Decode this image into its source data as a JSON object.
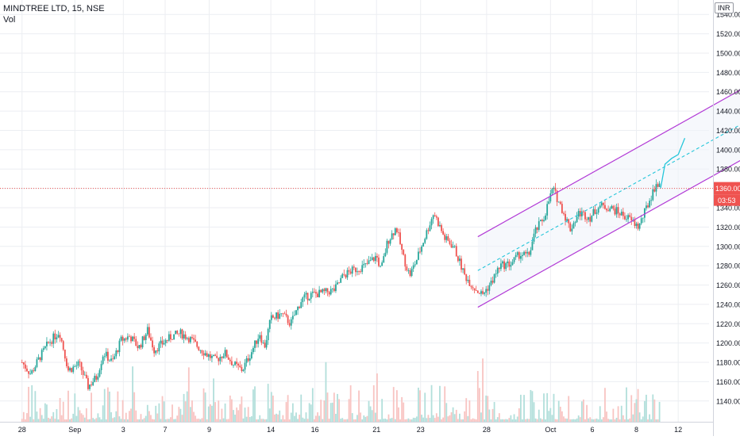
{
  "header": {
    "symbol": "MINDTREE LTD, 15, NSE",
    "indicator": "Vol",
    "currency": "INR"
  },
  "price_tag": {
    "price": "1360.00",
    "countdown": "03:53"
  },
  "colors": {
    "up": "#26a69a",
    "down": "#ef5350",
    "vol_up": "#b2dfdb",
    "vol_down": "#f8c4c2",
    "channel": "#b23ad6",
    "midline": "#26c6da",
    "price_line": "#ef5350",
    "grid": "#eceef2",
    "axis_text": "#131722"
  },
  "chart_data": {
    "type": "candlestick",
    "title": "MINDTREE LTD, 15, NSE",
    "xlabel": "",
    "ylabel": "",
    "grid": true,
    "ylim": [
      1130,
      1550
    ],
    "y_ticks": [
      1540,
      1520,
      1500,
      1480,
      1460,
      1440,
      1420,
      1400,
      1380,
      1360,
      1340,
      1320,
      1300,
      1280,
      1260,
      1240,
      1220,
      1200,
      1180,
      1160,
      1140
    ],
    "y_ticks_hidden": [
      1360
    ],
    "x_ticks": [
      "28",
      "Sep",
      "3",
      "7",
      "9",
      "14",
      "16",
      "21",
      "23",
      "28",
      "Oct",
      "6",
      "8",
      "12"
    ],
    "x_tick_values": [
      0,
      2.4,
      4.6,
      6.5,
      8.5,
      11.3,
      13.3,
      16.1,
      18.1,
      21.1,
      24.0,
      25.9,
      27.9,
      29.8
    ],
    "x_range": [
      -1.0,
      31.2
    ],
    "last_price": 1360,
    "price_series": [
      [
        0.0,
        1180
      ],
      [
        0.4,
        1168
      ],
      [
        0.8,
        1185
      ],
      [
        1.2,
        1200
      ],
      [
        1.7,
        1212
      ],
      [
        2.1,
        1172
      ],
      [
        2.6,
        1178
      ],
      [
        3.0,
        1155
      ],
      [
        3.4,
        1165
      ],
      [
        3.7,
        1190
      ],
      [
        4.1,
        1180
      ],
      [
        4.5,
        1203
      ],
      [
        4.9,
        1207
      ],
      [
        5.3,
        1195
      ],
      [
        5.7,
        1213
      ],
      [
        6.0,
        1193
      ],
      [
        6.4,
        1200
      ],
      [
        6.8,
        1207
      ],
      [
        7.2,
        1210
      ],
      [
        7.6,
        1205
      ],
      [
        8.0,
        1196
      ],
      [
        8.4,
        1188
      ],
      [
        8.8,
        1182
      ],
      [
        9.2,
        1190
      ],
      [
        9.6,
        1178
      ],
      [
        10.0,
        1172
      ],
      [
        10.4,
        1190
      ],
      [
        10.8,
        1210
      ],
      [
        11.0,
        1195
      ],
      [
        11.3,
        1225
      ],
      [
        11.8,
        1230
      ],
      [
        12.2,
        1220
      ],
      [
        12.7,
        1245
      ],
      [
        13.1,
        1250
      ],
      [
        13.7,
        1252
      ],
      [
        14.2,
        1255
      ],
      [
        14.6,
        1270
      ],
      [
        15.0,
        1275
      ],
      [
        15.6,
        1280
      ],
      [
        16.1,
        1290
      ],
      [
        16.3,
        1275
      ],
      [
        16.6,
        1305
      ],
      [
        17.0,
        1320
      ],
      [
        17.3,
        1290
      ],
      [
        17.6,
        1270
      ],
      [
        17.9,
        1285
      ],
      [
        18.3,
        1310
      ],
      [
        18.7,
        1335
      ],
      [
        19.2,
        1308
      ],
      [
        19.6,
        1300
      ],
      [
        20.1,
        1270
      ],
      [
        20.5,
        1258
      ],
      [
        20.9,
        1250
      ],
      [
        21.3,
        1262
      ],
      [
        21.7,
        1280
      ],
      [
        22.2,
        1282
      ],
      [
        22.6,
        1292
      ],
      [
        23.0,
        1290
      ],
      [
        23.3,
        1315
      ],
      [
        23.7,
        1330
      ],
      [
        24.1,
        1360
      ],
      [
        24.5,
        1340
      ],
      [
        24.9,
        1318
      ],
      [
        25.3,
        1335
      ],
      [
        25.8,
        1330
      ],
      [
        26.2,
        1342
      ],
      [
        26.7,
        1340
      ],
      [
        27.1,
        1335
      ],
      [
        27.6,
        1328
      ],
      [
        28.0,
        1320
      ],
      [
        28.4,
        1342
      ],
      [
        28.8,
        1365
      ],
      [
        29.0,
        1360
      ]
    ],
    "projection": [
      [
        29.0,
        1360
      ],
      [
        29.2,
        1385
      ],
      [
        29.5,
        1391
      ],
      [
        29.8,
        1395
      ],
      [
        30.1,
        1412
      ]
    ],
    "channel": {
      "upper": [
        [
          20.7,
          1310
        ],
        [
          33.5,
          1473
        ]
      ],
      "middle": [
        [
          20.7,
          1275
        ],
        [
          33.5,
          1437
        ]
      ],
      "lower": [
        [
          20.7,
          1237
        ],
        [
          33.5,
          1400
        ]
      ]
    }
  }
}
